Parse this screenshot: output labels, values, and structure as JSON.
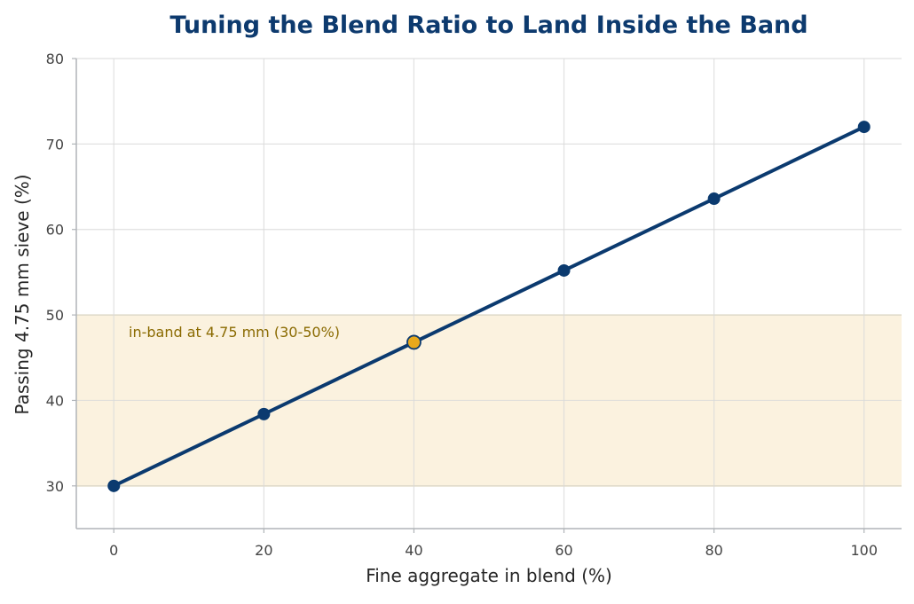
{
  "chart_data": {
    "type": "line",
    "title": "Tuning the Blend Ratio to Land Inside the Band",
    "xlabel": "Fine aggregate in blend  (%)",
    "ylabel": "Passing 4.75 mm sieve  (%)",
    "xlim": [
      -5,
      105
    ],
    "ylim": [
      25,
      80
    ],
    "xticks": [
      0,
      20,
      40,
      60,
      80,
      100
    ],
    "yticks": [
      30,
      40,
      50,
      60,
      70,
      80
    ],
    "grid": true,
    "x": [
      0,
      20,
      40,
      60,
      80,
      100
    ],
    "series": [
      {
        "values": [
          30.0,
          38.4,
          46.8,
          55.2,
          63.6,
          72.0
        ]
      }
    ],
    "highlight": {
      "x": 40,
      "y": 46.8
    },
    "band": {
      "y0": 30,
      "y1": 50,
      "label": "in-band at 4.75 mm (30-50%)"
    },
    "colors": {
      "title": "#0d3a6e",
      "line": "#0b3a6f",
      "marker": "#0b3a6f",
      "highlight_marker": "#e8a91c",
      "band_fill": "#fbf2df",
      "band_edge": "#e8d9b0",
      "band_label": "#8a6a00",
      "grid": "#d9d9d9",
      "axis": "#b0b4b8"
    }
  }
}
